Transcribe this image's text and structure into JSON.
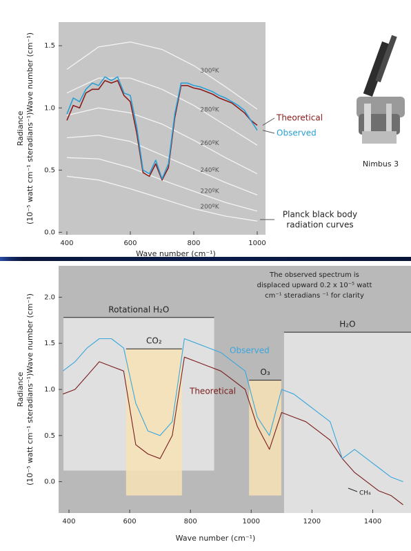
{
  "chart_data": [
    {
      "type": "line",
      "x_label": "Wave number (cm⁻¹)",
      "y_label": [
        "Radiance",
        "(10⁻⁵ watt cm⁻¹ steradians⁻¹)Wave number (cm⁻¹)"
      ],
      "xlim": [
        374,
        1026
      ],
      "ylim": [
        -0.02,
        1.69
      ],
      "xticks": [
        400,
        600,
        800,
        1000
      ],
      "yticks": [
        {
          "value": 0,
          "label": "0.0"
        },
        0.5,
        {
          "value": 1,
          "label": "1.0"
        },
        1.5
      ],
      "x": [
        400,
        420,
        440,
        460,
        480,
        500,
        520,
        540,
        560,
        580,
        600,
        620,
        640,
        660,
        680,
        700,
        720,
        740,
        760,
        780,
        800,
        820,
        840,
        860,
        880,
        900,
        920,
        940,
        960,
        980,
        1000
      ],
      "series": [
        {
          "name": "Theoretical",
          "color": "#8b1a1a",
          "values": [
            0.9,
            1.02,
            1.0,
            1.12,
            1.15,
            1.15,
            1.22,
            1.2,
            1.22,
            1.1,
            1.05,
            0.8,
            0.48,
            0.45,
            0.55,
            0.42,
            0.52,
            0.92,
            1.18,
            1.18,
            1.16,
            1.15,
            1.13,
            1.11,
            1.08,
            1.06,
            1.04,
            1.0,
            0.96,
            0.9,
            0.86
          ]
        },
        {
          "name": "Observed",
          "color": "#2a9fd6",
          "values": [
            0.95,
            1.08,
            1.05,
            1.15,
            1.2,
            1.18,
            1.25,
            1.22,
            1.25,
            1.12,
            1.1,
            0.85,
            0.5,
            0.47,
            0.58,
            0.43,
            0.55,
            0.95,
            1.2,
            1.2,
            1.18,
            1.17,
            1.15,
            1.13,
            1.1,
            1.08,
            1.05,
            1.02,
            0.98,
            0.9,
            0.82
          ]
        }
      ],
      "planck_x": [
        400,
        500,
        600,
        700,
        800,
        900,
        1000
      ],
      "planck_curves": [
        {
          "name": "300ºK",
          "values": [
            1.31,
            1.49,
            1.53,
            1.47,
            1.34,
            1.17,
            0.99
          ]
        },
        {
          "name": "280ºK",
          "values": [
            1.12,
            1.24,
            1.24,
            1.15,
            1.02,
            0.86,
            0.7
          ]
        },
        {
          "name": "260ºK",
          "values": [
            0.94,
            1.0,
            0.96,
            0.87,
            0.74,
            0.6,
            0.47
          ]
        },
        {
          "name": "240ºK",
          "values": [
            0.76,
            0.78,
            0.73,
            0.62,
            0.51,
            0.4,
            0.3
          ]
        },
        {
          "name": "220ºK",
          "values": [
            0.6,
            0.59,
            0.52,
            0.42,
            0.33,
            0.24,
            0.17
          ]
        },
        {
          "name": "200ºK",
          "values": [
            0.45,
            0.42,
            0.35,
            0.27,
            0.19,
            0.13,
            0.09
          ]
        }
      ],
      "annotations": {
        "satellite": "Nimbus 3",
        "planck": [
          "Planck black body",
          "radiation curves"
        ]
      }
    },
    {
      "type": "line",
      "x_label": "Wave number (cm⁻¹)",
      "y_label": [
        "Radiance",
        "(10⁻⁵ watt cm⁻¹ steradians⁻¹)Wave number (cm⁻¹)"
      ],
      "xlim": [
        366,
        1526
      ],
      "ylim": [
        -0.34,
        2.34
      ],
      "xticks": [
        400,
        600,
        800,
        1000,
        1200,
        1400
      ],
      "yticks": [
        {
          "value": 0,
          "label": "0.0"
        },
        0.5,
        {
          "value": 1,
          "label": "1.0"
        },
        1.5,
        {
          "value": 2,
          "label": "2.0"
        }
      ],
      "x": [
        380,
        420,
        460,
        500,
        540,
        580,
        620,
        660,
        700,
        740,
        780,
        820,
        860,
        900,
        940,
        980,
        1020,
        1060,
        1100,
        1140,
        1180,
        1220,
        1260,
        1300,
        1340,
        1380,
        1420,
        1460,
        1500
      ],
      "series": [
        {
          "name": "Theoretical",
          "color": "#7a1c1c",
          "values": [
            0.95,
            1.0,
            1.15,
            1.3,
            1.25,
            1.2,
            0.4,
            0.3,
            0.25,
            0.5,
            1.35,
            1.3,
            1.25,
            1.2,
            1.1,
            1.0,
            0.6,
            0.35,
            0.75,
            0.7,
            0.65,
            0.55,
            0.45,
            0.25,
            0.1,
            0.0,
            -0.1,
            -0.15,
            -0.25
          ]
        },
        {
          "name": "Observed",
          "color": "#3aa6dc",
          "values": [
            1.2,
            1.3,
            1.45,
            1.55,
            1.55,
            1.45,
            0.85,
            0.55,
            0.5,
            0.65,
            1.55,
            1.5,
            1.45,
            1.4,
            1.3,
            1.2,
            0.7,
            0.5,
            1.0,
            0.95,
            0.85,
            0.75,
            0.65,
            0.25,
            0.35,
            0.25,
            0.15,
            0.05,
            0.0
          ]
        }
      ],
      "regions": [
        {
          "label": "Rotational H₂O",
          "x": [
            382,
            878
          ],
          "y": [
            0.12,
            1.78
          ],
          "color": "#e6e6e6"
        },
        {
          "label": "H₂O",
          "x": [
            1108,
            1526
          ],
          "y": [
            -0.34,
            1.62
          ],
          "color": "#e6e6e6"
        },
        {
          "label": "CO₂",
          "x": [
            588,
            772
          ],
          "y": [
            -0.15,
            1.44
          ],
          "color": "#f7e2b6"
        },
        {
          "label": "O₃",
          "x": [
            993,
            1099
          ],
          "y": [
            -0.15,
            1.1
          ],
          "color": "#f7e2b6"
        }
      ],
      "annotations": {
        "note": [
          "The observed spectrum is",
          "displaced upward 0.2 x 10⁻⁵ watt",
          "cm⁻¹ steradians ⁻¹ for clarity"
        ],
        "ch4": "CH₄"
      }
    }
  ]
}
